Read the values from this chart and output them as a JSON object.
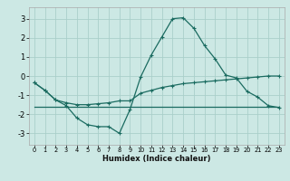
{
  "xlabel": "Humidex (Indice chaleur)",
  "background_color": "#cce8e4",
  "grid_color": "#aacfca",
  "line_color": "#1a6b60",
  "xlim": [
    -0.5,
    23.5
  ],
  "ylim": [
    -3.6,
    3.6
  ],
  "yticks": [
    -3,
    -2,
    -1,
    0,
    1,
    2,
    3
  ],
  "xticks": [
    0,
    1,
    2,
    3,
    4,
    5,
    6,
    7,
    8,
    9,
    10,
    11,
    12,
    13,
    14,
    15,
    16,
    17,
    18,
    19,
    20,
    21,
    22,
    23
  ],
  "line1_x": [
    0,
    1,
    2,
    3,
    4,
    5,
    6,
    7,
    8,
    9,
    10,
    11,
    12,
    13,
    14,
    15,
    16,
    17,
    18,
    19,
    20,
    21,
    22,
    23
  ],
  "line1_y": [
    -0.35,
    -0.75,
    -1.25,
    -1.55,
    -2.2,
    -2.55,
    -2.65,
    -2.65,
    -3.0,
    -1.75,
    -0.05,
    1.1,
    2.05,
    3.0,
    3.05,
    2.5,
    1.6,
    0.9,
    0.05,
    -0.1,
    -0.8,
    -1.1,
    -1.55,
    -1.65
  ],
  "line2_x": [
    0,
    1,
    2,
    3,
    4,
    5,
    6,
    7,
    8,
    9,
    10,
    11,
    12,
    13,
    14,
    15,
    16,
    17,
    18,
    19,
    20,
    21,
    22,
    23
  ],
  "line2_y": [
    -0.35,
    -0.75,
    -1.25,
    -1.4,
    -1.5,
    -1.5,
    -1.45,
    -1.4,
    -1.3,
    -1.3,
    -0.9,
    -0.75,
    -0.6,
    -0.5,
    -0.4,
    -0.35,
    -0.3,
    -0.25,
    -0.2,
    -0.15,
    -0.1,
    -0.05,
    0.0,
    0.0
  ],
  "line3_x": [
    0,
    23
  ],
  "line3_y": [
    -1.6,
    -1.6
  ]
}
